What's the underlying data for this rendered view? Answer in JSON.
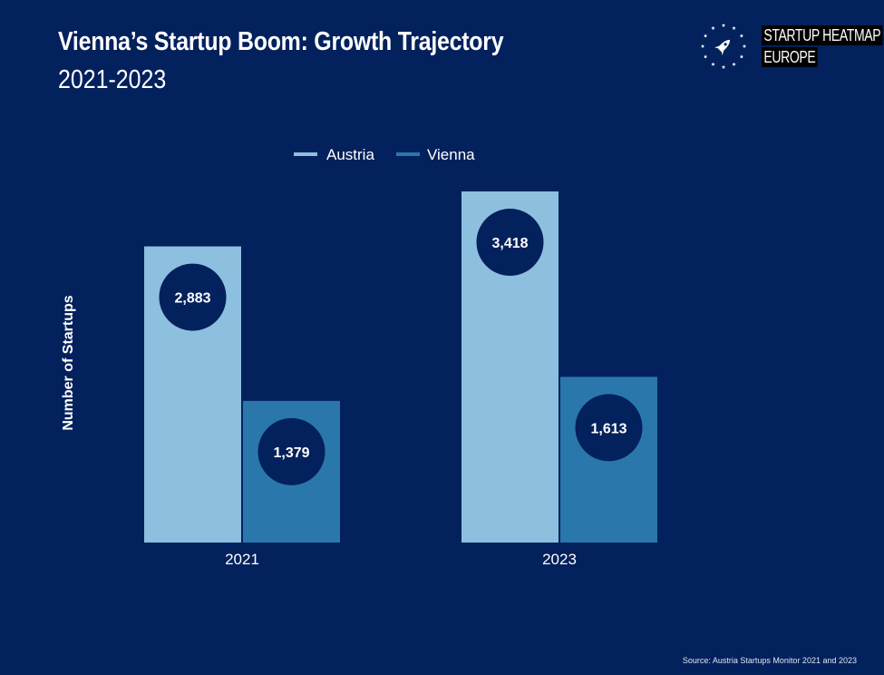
{
  "header": {
    "title": "Vienna’s Startup Boom: Growth Trajectory",
    "subtitle": "2021-2023"
  },
  "logo": {
    "line1": "STARTUP HEATMAP",
    "line2": "EUROPE",
    "icon": "rocket-stars-icon"
  },
  "colors": {
    "background": "#03215c",
    "austria": "#8dbfdf",
    "vienna": "#2a77ab",
    "bubble": "#03215c",
    "text": "#ffffff"
  },
  "chart_data": {
    "type": "bar",
    "title": "Vienna’s Startup Boom: Growth Trajectory",
    "subtitle": "2021-2023",
    "xlabel": "",
    "ylabel": "Number of Startups",
    "categories": [
      "2021",
      "2023"
    ],
    "series": [
      {
        "name": "Austria",
        "values": [
          2883,
          3418
        ],
        "labels": [
          "2,883",
          "3,418"
        ]
      },
      {
        "name": "Vienna",
        "values": [
          1379,
          1613
        ],
        "labels": [
          "1,379",
          "1,613"
        ]
      }
    ],
    "ylim": [
      0,
      3418
    ],
    "grid": false,
    "legend": "top-center"
  },
  "footer": {
    "source": "Source: Austria Startups Monitor 2021 and 2023"
  }
}
